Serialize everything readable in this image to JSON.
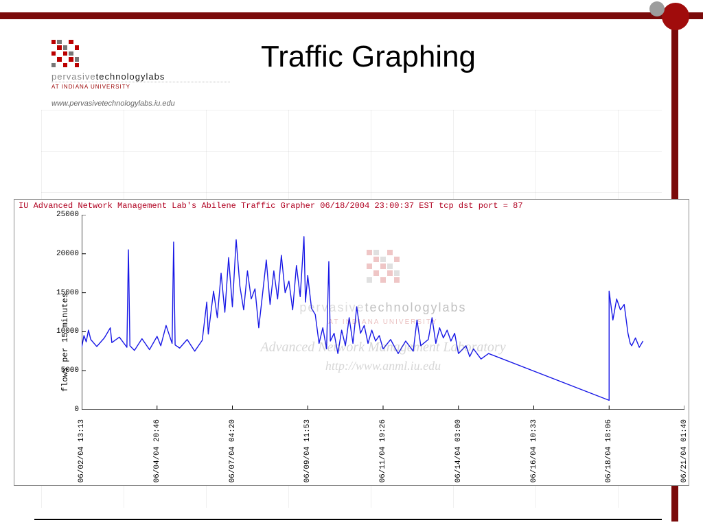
{
  "slide": {
    "title": "Traffic Graphing",
    "brand_line1_light": "pervasive",
    "brand_line1_bold": "technologylabs",
    "brand_line2": "AT INDIANA UNIVERSITY",
    "brand_url": "www.pervasivetechnologylabs.iu.edu",
    "accent_color": "#7a0a0a",
    "accent_circle_color": "#a00c0c",
    "grey_circle_color": "#9d9d9d"
  },
  "chart": {
    "type": "line",
    "caption": "IU Advanced Network Management Lab's Abilene Traffic Grapher 06/18/2004 23:00:37 EST tcp dst port = 87",
    "caption_color": "#b00020",
    "caption_fontsize": 12,
    "ylabel": "flows per 15 minutes",
    "label_fontsize": 12,
    "font_family": "Courier New, monospace",
    "background_color": "#ffffff",
    "border_color": "#8a8a8a",
    "axis_color": "#000000",
    "line_color": "#1818e6",
    "line_width": 1.4,
    "ylim": [
      0,
      25000
    ],
    "yticks": [
      0,
      5000,
      10000,
      15000,
      20000,
      25000
    ],
    "x_range_units": 8,
    "xticks": [
      {
        "pos": 0.0,
        "label": "06/02/04 13:13"
      },
      {
        "pos": 1.0,
        "label": "06/04/04 20:46"
      },
      {
        "pos": 2.0,
        "label": "06/07/04 04:20"
      },
      {
        "pos": 3.0,
        "label": "06/09/04 11:53"
      },
      {
        "pos": 4.0,
        "label": "06/11/04 19:26"
      },
      {
        "pos": 5.0,
        "label": "06/14/04 03:00"
      },
      {
        "pos": 6.0,
        "label": "06/16/04 10:33"
      },
      {
        "pos": 7.0,
        "label": "06/18/04 18:06"
      },
      {
        "pos": 8.0,
        "label": "06/21/04 01:40"
      }
    ],
    "series": [
      {
        "x": 0.0,
        "y": 8000
      },
      {
        "x": 0.03,
        "y": 9500
      },
      {
        "x": 0.06,
        "y": 8700
      },
      {
        "x": 0.09,
        "y": 10200
      },
      {
        "x": 0.12,
        "y": 9000
      },
      {
        "x": 0.2,
        "y": 8100
      },
      {
        "x": 0.3,
        "y": 9200
      },
      {
        "x": 0.38,
        "y": 10500
      },
      {
        "x": 0.4,
        "y": 8600
      },
      {
        "x": 0.5,
        "y": 9300
      },
      {
        "x": 0.6,
        "y": 8000
      },
      {
        "x": 0.62,
        "y": 20500
      },
      {
        "x": 0.64,
        "y": 8200
      },
      {
        "x": 0.7,
        "y": 7600
      },
      {
        "x": 0.8,
        "y": 9100
      },
      {
        "x": 0.9,
        "y": 7700
      },
      {
        "x": 1.0,
        "y": 9400
      },
      {
        "x": 1.05,
        "y": 8200
      },
      {
        "x": 1.12,
        "y": 10800
      },
      {
        "x": 1.2,
        "y": 8500
      },
      {
        "x": 1.22,
        "y": 21500
      },
      {
        "x": 1.24,
        "y": 8300
      },
      {
        "x": 1.3,
        "y": 7900
      },
      {
        "x": 1.4,
        "y": 9000
      },
      {
        "x": 1.5,
        "y": 7500
      },
      {
        "x": 1.6,
        "y": 8900
      },
      {
        "x": 1.66,
        "y": 13800
      },
      {
        "x": 1.68,
        "y": 9700
      },
      {
        "x": 1.75,
        "y": 15200
      },
      {
        "x": 1.8,
        "y": 11800
      },
      {
        "x": 1.85,
        "y": 17500
      },
      {
        "x": 1.9,
        "y": 12500
      },
      {
        "x": 1.95,
        "y": 19500
      },
      {
        "x": 2.0,
        "y": 13200
      },
      {
        "x": 2.05,
        "y": 21800
      },
      {
        "x": 2.1,
        "y": 15800
      },
      {
        "x": 2.15,
        "y": 12800
      },
      {
        "x": 2.2,
        "y": 17800
      },
      {
        "x": 2.25,
        "y": 14200
      },
      {
        "x": 2.3,
        "y": 15500
      },
      {
        "x": 2.35,
        "y": 10500
      },
      {
        "x": 2.4,
        "y": 14800
      },
      {
        "x": 2.45,
        "y": 19200
      },
      {
        "x": 2.5,
        "y": 13500
      },
      {
        "x": 2.55,
        "y": 17800
      },
      {
        "x": 2.6,
        "y": 14200
      },
      {
        "x": 2.65,
        "y": 19800
      },
      {
        "x": 2.7,
        "y": 15000
      },
      {
        "x": 2.75,
        "y": 16500
      },
      {
        "x": 2.8,
        "y": 12800
      },
      {
        "x": 2.85,
        "y": 18500
      },
      {
        "x": 2.9,
        "y": 14500
      },
      {
        "x": 2.95,
        "y": 22200
      },
      {
        "x": 2.97,
        "y": 13800
      },
      {
        "x": 3.0,
        "y": 17200
      },
      {
        "x": 3.05,
        "y": 13000
      },
      {
        "x": 3.1,
        "y": 12200
      },
      {
        "x": 3.15,
        "y": 8500
      },
      {
        "x": 3.2,
        "y": 10500
      },
      {
        "x": 3.25,
        "y": 7800
      },
      {
        "x": 3.28,
        "y": 19000
      },
      {
        "x": 3.3,
        "y": 8800
      },
      {
        "x": 3.35,
        "y": 9800
      },
      {
        "x": 3.4,
        "y": 7200
      },
      {
        "x": 3.45,
        "y": 10200
      },
      {
        "x": 3.5,
        "y": 8200
      },
      {
        "x": 3.55,
        "y": 11800
      },
      {
        "x": 3.6,
        "y": 8500
      },
      {
        "x": 3.65,
        "y": 13200
      },
      {
        "x": 3.7,
        "y": 9800
      },
      {
        "x": 3.75,
        "y": 10800
      },
      {
        "x": 3.8,
        "y": 8500
      },
      {
        "x": 3.85,
        "y": 10200
      },
      {
        "x": 3.9,
        "y": 8800
      },
      {
        "x": 3.95,
        "y": 9500
      },
      {
        "x": 4.0,
        "y": 7800
      },
      {
        "x": 4.1,
        "y": 9000
      },
      {
        "x": 4.2,
        "y": 7200
      },
      {
        "x": 4.3,
        "y": 8800
      },
      {
        "x": 4.4,
        "y": 7500
      },
      {
        "x": 4.45,
        "y": 11500
      },
      {
        "x": 4.5,
        "y": 8200
      },
      {
        "x": 4.6,
        "y": 9000
      },
      {
        "x": 4.65,
        "y": 11800
      },
      {
        "x": 4.7,
        "y": 8500
      },
      {
        "x": 4.75,
        "y": 10500
      },
      {
        "x": 4.8,
        "y": 9200
      },
      {
        "x": 4.85,
        "y": 10200
      },
      {
        "x": 4.9,
        "y": 8800
      },
      {
        "x": 4.95,
        "y": 9800
      },
      {
        "x": 5.0,
        "y": 7200
      },
      {
        "x": 5.1,
        "y": 8200
      },
      {
        "x": 5.15,
        "y": 6800
      },
      {
        "x": 5.2,
        "y": 7800
      },
      {
        "x": 5.3,
        "y": 6500
      },
      {
        "x": 5.4,
        "y": 7200
      },
      {
        "x": 7.0,
        "y": 1200
      },
      {
        "x": 7.0,
        "y": 15200
      },
      {
        "x": 7.05,
        "y": 11500
      },
      {
        "x": 7.1,
        "y": 14200
      },
      {
        "x": 7.15,
        "y": 12800
      },
      {
        "x": 7.2,
        "y": 13500
      },
      {
        "x": 7.25,
        "y": 9800
      },
      {
        "x": 7.28,
        "y": 8500
      },
      {
        "x": 7.3,
        "y": 8200
      },
      {
        "x": 7.35,
        "y": 9200
      },
      {
        "x": 7.4,
        "y": 8000
      },
      {
        "x": 7.45,
        "y": 8800
      }
    ],
    "watermark": {
      "line1_light": "pervasive",
      "line1_bold": "technologylabs",
      "line2": "AT INDIANA UNIVERSITY",
      "line3": "Advanced Network Management Laboratory",
      "line4": "http://www.anml.iu.edu"
    }
  }
}
